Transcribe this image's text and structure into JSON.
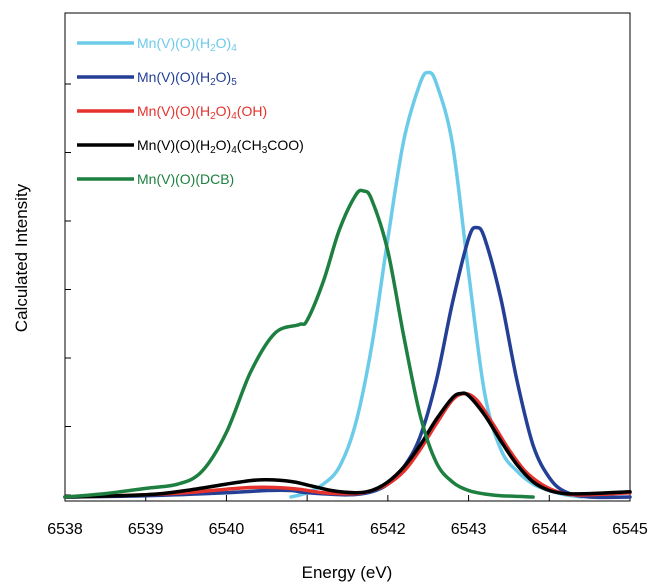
{
  "chart_data": {
    "type": "line",
    "xlabel": "Energy (eV)",
    "ylabel": "Calculated Intensity",
    "xlim": [
      6538,
      6545
    ],
    "ylim": [
      0,
      1.0
    ],
    "x_ticks": [
      "6538",
      "6539",
      "6540",
      "6541",
      "6542",
      "6543",
      "6544",
      "6545"
    ],
    "y_tick_count": 7,
    "grid": false,
    "legend_placement": "top-left",
    "series": [
      {
        "name": "Mn(V)(O)(H2O)4",
        "color": "#6ccbe9",
        "label_parts": [
          [
            "Mn(V)(O)(H",
            ""
          ],
          [
            "2",
            "sub"
          ],
          [
            "O)",
            ""
          ],
          [
            "4",
            "sub"
          ]
        ],
        "x": [
          6540.8,
          6541.0,
          6541.2,
          6541.4,
          6541.6,
          6541.8,
          6542.0,
          6542.2,
          6542.4,
          6542.5,
          6542.6,
          6542.8,
          6543.0,
          6543.2,
          6543.4,
          6543.6,
          6543.8,
          6544.0,
          6544.2,
          6544.4
        ],
        "y": [
          0.0,
          0.01,
          0.03,
          0.07,
          0.17,
          0.35,
          0.6,
          0.83,
          0.96,
          0.985,
          0.96,
          0.82,
          0.52,
          0.24,
          0.11,
          0.06,
          0.03,
          0.015,
          0.005,
          0.0
        ]
      },
      {
        "name": "Mn(V)(O)(H2O)5",
        "color": "#233f96",
        "label_parts": [
          [
            "Mn(V)(O)(H",
            ""
          ],
          [
            "2",
            "sub"
          ],
          [
            "O)",
            ""
          ],
          [
            "5",
            "sub"
          ]
        ],
        "x": [
          6538.0,
          6539.0,
          6540.0,
          6540.5,
          6540.8,
          6541.0,
          6541.5,
          6541.8,
          6542.0,
          6542.2,
          6542.4,
          6542.6,
          6542.8,
          6543.0,
          6543.1,
          6543.2,
          6543.4,
          6543.6,
          6543.8,
          6544.0,
          6544.2,
          6544.5,
          6545.0
        ],
        "y": [
          0.0,
          0.003,
          0.01,
          0.015,
          0.015,
          0.01,
          0.005,
          0.012,
          0.03,
          0.07,
          0.14,
          0.27,
          0.45,
          0.6,
          0.625,
          0.6,
          0.46,
          0.27,
          0.12,
          0.045,
          0.012,
          0.0,
          0.0
        ]
      },
      {
        "name": "Mn(V)(O)(H2O)4(OH)",
        "color": "#e5322d",
        "label_parts": [
          [
            "Mn(V)(O)(H",
            ""
          ],
          [
            "2",
            "sub"
          ],
          [
            "O)",
            ""
          ],
          [
            "4",
            "sub"
          ],
          [
            "(OH)",
            ""
          ]
        ],
        "x": [
          6538.0,
          6539.0,
          6539.5,
          6540.0,
          6540.3,
          6540.6,
          6540.9,
          6541.2,
          6541.6,
          6541.8,
          6542.0,
          6542.2,
          6542.4,
          6542.6,
          6542.8,
          6542.95,
          6543.1,
          6543.3,
          6543.5,
          6543.7,
          6543.9,
          6544.1,
          6544.3,
          6544.6,
          6545.0
        ],
        "y": [
          0.0,
          0.005,
          0.01,
          0.018,
          0.022,
          0.022,
          0.018,
          0.01,
          0.008,
          0.015,
          0.03,
          0.06,
          0.11,
          0.17,
          0.225,
          0.24,
          0.225,
          0.17,
          0.11,
          0.06,
          0.03,
          0.012,
          0.005,
          0.006,
          0.01
        ]
      },
      {
        "name": "Mn(V)(O)(H2O)4(CH3COO)",
        "color": "#000000",
        "label_parts": [
          [
            "Mn(V)(O)(H",
            ""
          ],
          [
            "2",
            "sub"
          ],
          [
            "O)",
            ""
          ],
          [
            "4",
            "sub"
          ],
          [
            "(CH",
            ""
          ],
          [
            "3",
            "sub"
          ],
          [
            "COO)",
            ""
          ]
        ],
        "x": [
          6538.0,
          6539.0,
          6539.5,
          6540.0,
          6540.3,
          6540.5,
          6540.8,
          6541.0,
          6541.3,
          6541.6,
          6541.8,
          6542.0,
          6542.2,
          6542.4,
          6542.6,
          6542.8,
          6542.9,
          6543.0,
          6543.2,
          6543.4,
          6543.6,
          6543.8,
          6544.0,
          6544.2,
          6544.5,
          6545.0
        ],
        "y": [
          0.0,
          0.005,
          0.015,
          0.03,
          0.038,
          0.04,
          0.036,
          0.028,
          0.015,
          0.01,
          0.015,
          0.035,
          0.07,
          0.12,
          0.18,
          0.23,
          0.24,
          0.235,
          0.19,
          0.13,
          0.075,
          0.035,
          0.015,
          0.008,
          0.008,
          0.012
        ]
      },
      {
        "name": "Mn(V)(O)(DCB)",
        "color": "#1e8040",
        "label_parts": [
          [
            "Mn(V)(O)(DCB)",
            ""
          ]
        ],
        "x": [
          6538.0,
          6538.5,
          6539.0,
          6539.4,
          6539.7,
          6540.0,
          6540.3,
          6540.6,
          6540.9,
          6541.0,
          6541.2,
          6541.4,
          6541.6,
          6541.7,
          6541.8,
          6542.0,
          6542.2,
          6542.4,
          6542.6,
          6542.8,
          6543.0,
          6543.2,
          6543.4,
          6543.8
        ],
        "y": [
          0.0,
          0.008,
          0.02,
          0.03,
          0.06,
          0.15,
          0.29,
          0.38,
          0.4,
          0.41,
          0.5,
          0.62,
          0.7,
          0.71,
          0.69,
          0.57,
          0.37,
          0.19,
          0.08,
          0.035,
          0.015,
          0.007,
          0.003,
          0.0
        ]
      }
    ]
  }
}
